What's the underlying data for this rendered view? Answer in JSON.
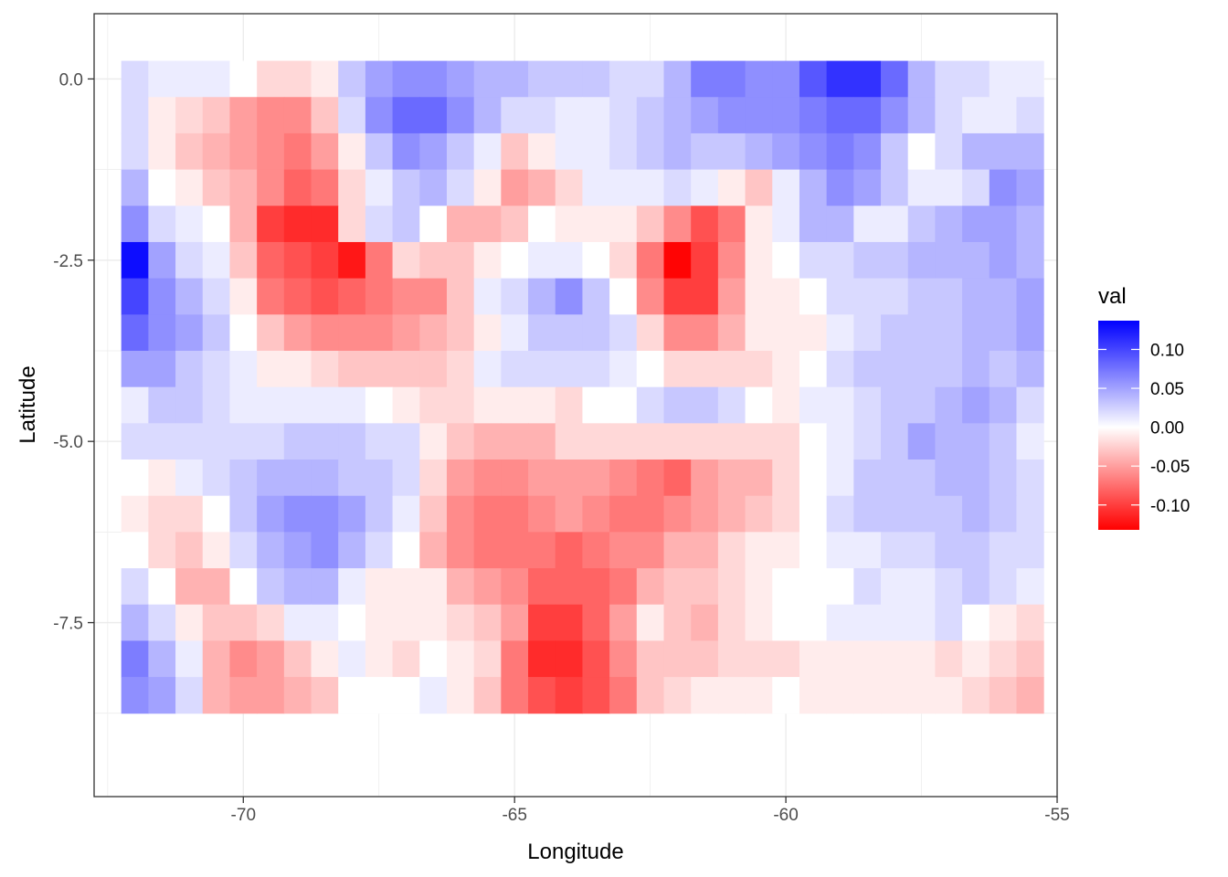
{
  "chart_data": {
    "type": "heatmap",
    "title": "",
    "xlabel": "Longitude",
    "ylabel": "Latitude",
    "xlim": [
      -72.75,
      -55.0
    ],
    "ylim": [
      -9.9,
      0.9
    ],
    "x_ticks": [
      -70,
      -65,
      -60,
      -55
    ],
    "x_tick_labels": [
      "-70",
      "-65",
      "-60",
      "-55"
    ],
    "y_ticks": [
      0.0,
      -2.5,
      -5.0,
      -7.5
    ],
    "y_tick_labels": [
      "0.0",
      "-2.5",
      "-5.0",
      "-7.5"
    ],
    "grid": true,
    "cell_size": {
      "lon": 0.5,
      "lat": 0.5
    },
    "x_start": -72.0,
    "y_start": 0.0,
    "legend": {
      "title": "val",
      "placement": "right",
      "breaks": [
        0.1,
        0.05,
        0.0,
        -0.05,
        -0.1
      ],
      "labels": [
        "0.10",
        "0.05",
        "0.00",
        "-0.05",
        "-0.10"
      ],
      "limits": [
        -0.132,
        0.137
      ],
      "colors": {
        "low": "#ff0000",
        "mid": "#ffffff",
        "high": "#0000ff"
      }
    },
    "values": [
      [
        0.02,
        0.01,
        0.01,
        0.01,
        0.0,
        -0.02,
        -0.02,
        -0.01,
        0.03,
        0.05,
        0.06,
        0.06,
        0.05,
        0.04,
        0.04,
        0.03,
        0.03,
        0.03,
        0.02,
        0.02,
        0.04,
        0.07,
        0.07,
        0.06,
        0.06,
        0.09,
        0.11,
        0.11,
        0.08,
        0.04,
        0.02,
        0.02,
        0.01,
        0.01
      ],
      [
        0.02,
        -0.01,
        -0.02,
        -0.03,
        -0.05,
        -0.06,
        -0.06,
        -0.03,
        0.02,
        0.06,
        0.08,
        0.08,
        0.06,
        0.04,
        0.02,
        0.02,
        0.01,
        0.01,
        0.02,
        0.03,
        0.04,
        0.05,
        0.06,
        0.06,
        0.06,
        0.07,
        0.08,
        0.08,
        0.06,
        0.04,
        0.02,
        0.01,
        0.01,
        0.02
      ],
      [
        0.02,
        -0.01,
        -0.03,
        -0.04,
        -0.05,
        -0.06,
        -0.07,
        -0.05,
        -0.01,
        0.03,
        0.06,
        0.05,
        0.03,
        0.01,
        -0.03,
        -0.01,
        0.01,
        0.01,
        0.02,
        0.03,
        0.04,
        0.03,
        0.03,
        0.04,
        0.05,
        0.06,
        0.07,
        0.06,
        0.03,
        0.0,
        0.02,
        0.04,
        0.04,
        0.04
      ],
      [
        0.04,
        0.0,
        -0.01,
        -0.03,
        -0.04,
        -0.06,
        -0.08,
        -0.07,
        -0.02,
        0.01,
        0.03,
        0.04,
        0.02,
        -0.01,
        -0.05,
        -0.04,
        -0.02,
        0.01,
        0.01,
        0.01,
        0.02,
        0.01,
        -0.01,
        -0.03,
        0.01,
        0.04,
        0.06,
        0.05,
        0.03,
        0.01,
        0.01,
        0.02,
        0.06,
        0.05
      ],
      [
        0.06,
        0.02,
        0.01,
        0.0,
        -0.04,
        -0.1,
        -0.11,
        -0.11,
        -0.02,
        0.02,
        0.03,
        0.0,
        -0.04,
        -0.04,
        -0.03,
        0.0,
        -0.01,
        -0.01,
        -0.01,
        -0.03,
        -0.06,
        -0.09,
        -0.07,
        -0.01,
        0.01,
        0.04,
        0.04,
        0.01,
        0.01,
        0.03,
        0.04,
        0.05,
        0.05,
        0.04
      ],
      [
        0.13,
        0.05,
        0.02,
        0.01,
        -0.03,
        -0.08,
        -0.09,
        -0.1,
        -0.12,
        -0.07,
        -0.02,
        -0.03,
        -0.03,
        -0.01,
        0.0,
        0.01,
        0.01,
        0.0,
        -0.02,
        -0.07,
        -0.13,
        -0.1,
        -0.06,
        -0.01,
        0.0,
        0.02,
        0.02,
        0.03,
        0.03,
        0.04,
        0.04,
        0.04,
        0.05,
        0.04
      ],
      [
        0.1,
        0.06,
        0.04,
        0.02,
        -0.01,
        -0.07,
        -0.08,
        -0.09,
        -0.08,
        -0.07,
        -0.06,
        -0.06,
        -0.03,
        0.01,
        0.02,
        0.04,
        0.06,
        0.03,
        0.0,
        -0.06,
        -0.1,
        -0.1,
        -0.05,
        -0.01,
        -0.01,
        0.0,
        0.02,
        0.02,
        0.02,
        0.03,
        0.03,
        0.04,
        0.04,
        0.05
      ],
      [
        0.08,
        0.06,
        0.05,
        0.03,
        0.0,
        -0.03,
        -0.05,
        -0.06,
        -0.06,
        -0.06,
        -0.05,
        -0.04,
        -0.03,
        -0.01,
        0.01,
        0.03,
        0.03,
        0.03,
        0.02,
        -0.02,
        -0.06,
        -0.06,
        -0.04,
        -0.01,
        -0.01,
        -0.01,
        0.01,
        0.02,
        0.03,
        0.03,
        0.03,
        0.04,
        0.04,
        0.05
      ],
      [
        0.05,
        0.05,
        0.03,
        0.02,
        0.01,
        -0.01,
        -0.01,
        -0.02,
        -0.03,
        -0.03,
        -0.03,
        -0.03,
        -0.02,
        0.01,
        0.02,
        0.02,
        0.02,
        0.02,
        0.01,
        0.0,
        -0.02,
        -0.02,
        -0.02,
        -0.02,
        -0.01,
        0.0,
        0.02,
        0.03,
        0.03,
        0.03,
        0.03,
        0.04,
        0.03,
        0.04
      ],
      [
        0.01,
        0.03,
        0.03,
        0.02,
        0.01,
        0.01,
        0.01,
        0.01,
        0.01,
        0.0,
        -0.01,
        -0.02,
        -0.02,
        -0.01,
        -0.01,
        -0.01,
        -0.02,
        0.0,
        0.0,
        0.02,
        0.03,
        0.03,
        0.02,
        0.0,
        -0.01,
        0.01,
        0.01,
        0.02,
        0.03,
        0.03,
        0.04,
        0.05,
        0.04,
        0.02
      ],
      [
        0.02,
        0.02,
        0.02,
        0.02,
        0.02,
        0.02,
        0.03,
        0.03,
        0.03,
        0.02,
        0.02,
        -0.01,
        -0.03,
        -0.04,
        -0.04,
        -0.04,
        -0.02,
        -0.02,
        -0.02,
        -0.02,
        -0.02,
        -0.02,
        -0.02,
        -0.02,
        -0.02,
        0.0,
        0.01,
        0.02,
        0.03,
        0.05,
        0.04,
        0.04,
        0.03,
        0.01
      ],
      [
        0.0,
        -0.01,
        0.01,
        0.02,
        0.03,
        0.04,
        0.04,
        0.04,
        0.03,
        0.03,
        0.02,
        -0.02,
        -0.05,
        -0.06,
        -0.06,
        -0.05,
        -0.05,
        -0.05,
        -0.06,
        -0.07,
        -0.08,
        -0.05,
        -0.04,
        -0.04,
        -0.02,
        0.0,
        0.01,
        0.03,
        0.03,
        0.03,
        0.04,
        0.04,
        0.03,
        0.02
      ],
      [
        -0.01,
        -0.02,
        -0.02,
        0.0,
        0.03,
        0.05,
        0.06,
        0.06,
        0.05,
        0.03,
        0.01,
        -0.03,
        -0.06,
        -0.07,
        -0.07,
        -0.06,
        -0.05,
        -0.06,
        -0.07,
        -0.07,
        -0.06,
        -0.05,
        -0.04,
        -0.03,
        -0.02,
        0.0,
        0.02,
        0.03,
        0.03,
        0.03,
        0.03,
        0.04,
        0.03,
        0.02
      ],
      [
        0.0,
        -0.02,
        -0.03,
        -0.01,
        0.02,
        0.04,
        0.05,
        0.06,
        0.04,
        0.02,
        0.0,
        -0.04,
        -0.06,
        -0.07,
        -0.07,
        -0.07,
        -0.08,
        -0.07,
        -0.06,
        -0.06,
        -0.04,
        -0.04,
        -0.02,
        -0.01,
        -0.01,
        0.0,
        0.01,
        0.01,
        0.02,
        0.02,
        0.03,
        0.03,
        0.02,
        0.02
      ],
      [
        0.02,
        0.0,
        -0.04,
        -0.04,
        0.0,
        0.03,
        0.04,
        0.04,
        0.01,
        -0.01,
        -0.01,
        -0.01,
        -0.04,
        -0.05,
        -0.06,
        -0.08,
        -0.08,
        -0.08,
        -0.07,
        -0.04,
        -0.03,
        -0.03,
        -0.02,
        -0.01,
        0.0,
        0.0,
        0.0,
        0.02,
        0.01,
        0.01,
        0.02,
        0.03,
        0.02,
        0.01
      ],
      [
        0.04,
        0.02,
        -0.01,
        -0.03,
        -0.03,
        -0.02,
        0.01,
        0.01,
        0.0,
        -0.01,
        -0.01,
        -0.01,
        -0.02,
        -0.03,
        -0.05,
        -0.1,
        -0.1,
        -0.08,
        -0.05,
        -0.01,
        -0.03,
        -0.04,
        -0.02,
        -0.01,
        0.0,
        0.0,
        0.01,
        0.01,
        0.01,
        0.01,
        0.02,
        0.0,
        -0.01,
        -0.02
      ],
      [
        0.07,
        0.04,
        0.01,
        -0.04,
        -0.06,
        -0.05,
        -0.03,
        -0.01,
        0.01,
        -0.01,
        -0.02,
        0.0,
        -0.01,
        -0.02,
        -0.07,
        -0.11,
        -0.11,
        -0.09,
        -0.06,
        -0.03,
        -0.03,
        -0.03,
        -0.02,
        -0.02,
        -0.02,
        -0.01,
        -0.01,
        -0.01,
        -0.01,
        -0.01,
        -0.02,
        -0.01,
        -0.02,
        -0.03
      ],
      [
        0.06,
        0.05,
        0.02,
        -0.04,
        -0.05,
        -0.05,
        -0.04,
        -0.03,
        0.0,
        0.0,
        0.0,
        0.01,
        -0.01,
        -0.03,
        -0.07,
        -0.09,
        -0.1,
        -0.09,
        -0.07,
        -0.03,
        -0.02,
        -0.01,
        -0.01,
        -0.01,
        0.0,
        -0.01,
        -0.01,
        -0.01,
        -0.01,
        -0.01,
        -0.01,
        -0.02,
        -0.03,
        -0.04
      ]
    ]
  }
}
